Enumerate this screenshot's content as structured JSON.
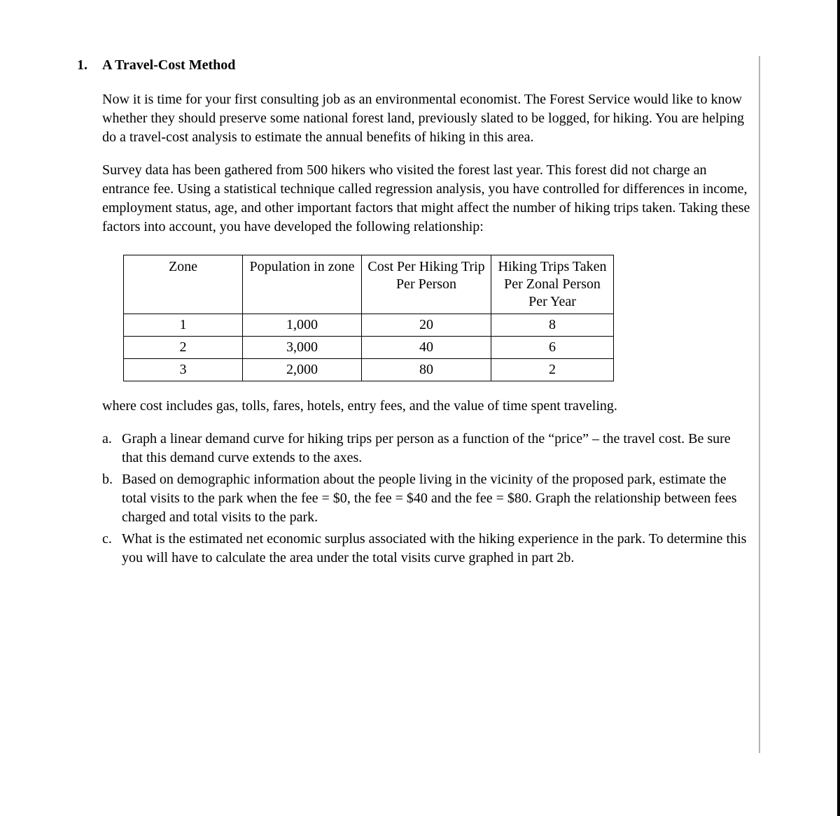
{
  "document": {
    "section_number": "1.",
    "section_title": "A Travel-Cost Method",
    "paragraph1": "Now it is time for your first consulting job as an environmental economist. The Forest Service would like to know whether they should preserve some national forest land, previously slated to be logged, for hiking. You are helping do a travel-cost analysis to estimate the annual benefits of hiking in this area.",
    "paragraph2": "Survey data has been gathered from 500 hikers who visited the forest last year. This forest did not charge an entrance fee. Using a statistical technique called regression analysis, you have controlled for differences in income, employment status, age, and other important factors that might affect the number of hiking trips taken. Taking these factors into account, you have developed the following relationship:",
    "table": {
      "headers": {
        "zone": "Zone",
        "population": "Population in zone",
        "cost": "Cost Per Hiking Trip Per Person",
        "trips": "Hiking Trips Taken Per Zonal Person Per Year"
      },
      "rows": [
        {
          "zone": "1",
          "population": "1,000",
          "cost": "20",
          "trips": "8"
        },
        {
          "zone": "2",
          "population": "3,000",
          "cost": "40",
          "trips": "6"
        },
        {
          "zone": "3",
          "population": "2,000",
          "cost": "80",
          "trips": "2"
        }
      ],
      "border_color": "#000000",
      "background_color": "#ffffff",
      "font_size_pt": 15
    },
    "paragraph3": "where cost includes gas, tolls, fares, hotels, entry fees, and the value of time spent traveling.",
    "items": [
      {
        "marker": "a.",
        "text": "Graph a linear demand curve for hiking trips per person as a function of the “price” – the travel cost. Be sure that this demand curve extends to the axes."
      },
      {
        "marker": "b.",
        "text": "Based on demographic information about the people living in the vicinity of the proposed park, estimate the total visits to the park when the fee = $0, the fee = $40 and the fee = $80.   Graph the relationship between fees charged and total visits to the park."
      },
      {
        "marker": "c.",
        "text": "What is the estimated net economic surplus associated with the hiking experience in the park.  To determine this you will have to calculate the area under the total visits curve graphed in part 2b."
      }
    ]
  },
  "colors": {
    "text": "#000000",
    "background": "#ffffff",
    "border_right": "#000000"
  },
  "typography": {
    "font_family": "Times New Roman",
    "body_font_size_pt": 15,
    "line_height": 1.35
  }
}
